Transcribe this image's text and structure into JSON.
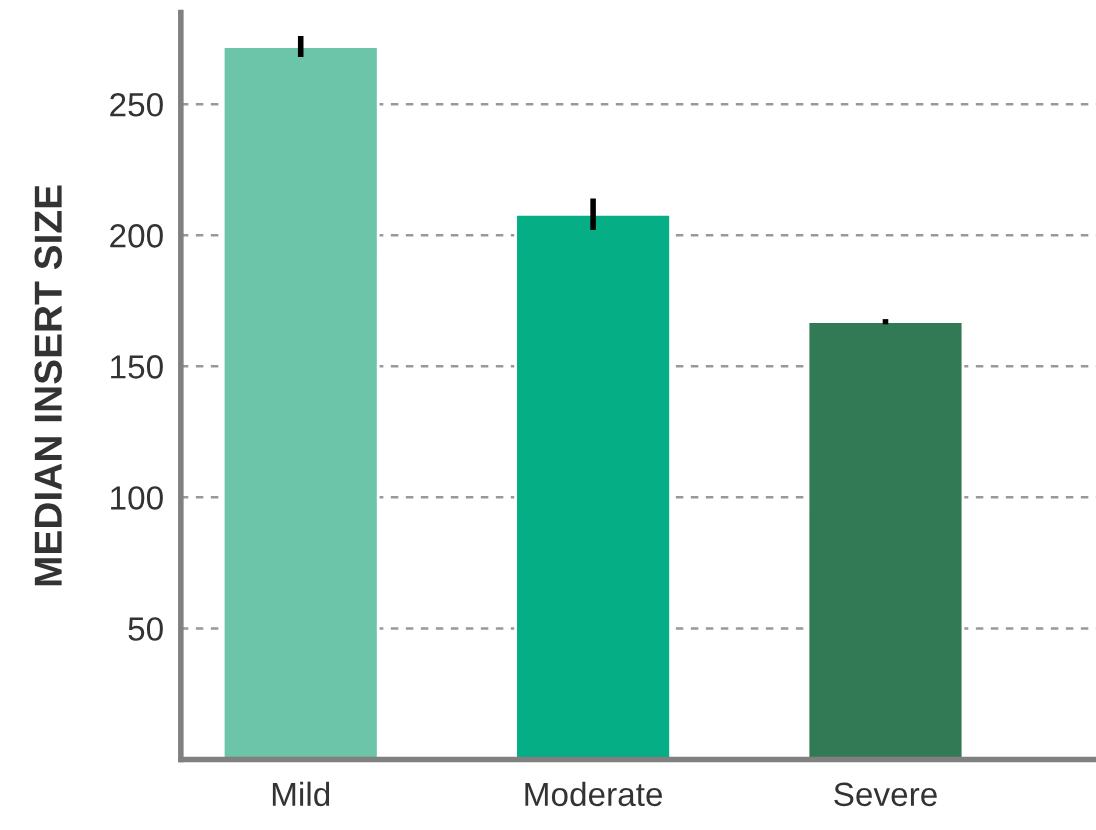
{
  "chart_data": {
    "type": "bar",
    "ylabel": "MEDIAN INSERT SIZE",
    "categories": [
      "Mild",
      "Moderate",
      "Severe"
    ],
    "values": [
      272,
      208,
      167
    ],
    "errors": [
      4,
      6,
      1
    ],
    "colors": [
      "#6cc5a8",
      "#05ae84",
      "#327a56"
    ],
    "ylim": [
      0,
      285
    ],
    "yticks": [
      50,
      100,
      150,
      200,
      250
    ],
    "grid": "y",
    "legend": false
  }
}
